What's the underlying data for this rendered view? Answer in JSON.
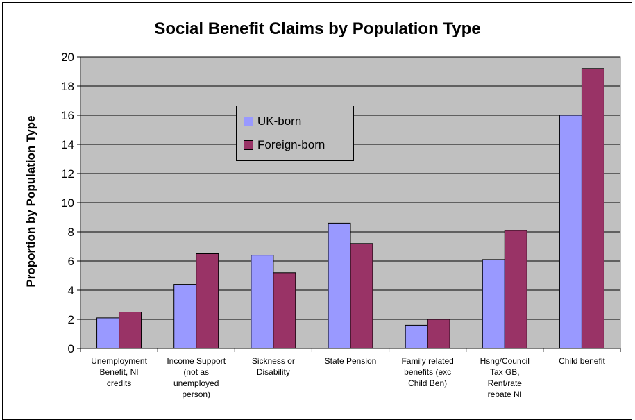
{
  "chart_data": {
    "type": "bar",
    "title": "Social Benefit Claims by Population Type",
    "xlabel": "",
    "ylabel": "Proportion by Population Type",
    "ylim": [
      0,
      20
    ],
    "yticks": [
      0,
      2,
      4,
      6,
      8,
      10,
      12,
      14,
      16,
      18,
      20
    ],
    "grid": true,
    "legend_position": "upper-center",
    "categories": [
      "Unemployment Benefit, NI credits",
      "Income Support (not as unemployed person)",
      "Sickness or Disability",
      "State Pension",
      "Family related benefits (exc Child Ben)",
      "Hsng/Council Tax GB, Rent/rate rebate NI",
      "Child benefit"
    ],
    "category_lines": [
      [
        "Unemployment",
        "Benefit, NI",
        "credits"
      ],
      [
        "Income Support",
        "(not as",
        "unemployed",
        "person)"
      ],
      [
        "Sickness or",
        "Disability"
      ],
      [
        "State Pension"
      ],
      [
        "Family related",
        "benefits (exc",
        "Child Ben)"
      ],
      [
        "Hsng/Council",
        "Tax GB,",
        "Rent/rate",
        "rebate NI"
      ],
      [
        "Child benefit"
      ]
    ],
    "series": [
      {
        "name": "UK-born",
        "color": "#9999ff",
        "values": [
          2.1,
          4.4,
          6.4,
          8.6,
          1.6,
          6.1,
          16.0
        ]
      },
      {
        "name": "Foreign-born",
        "color": "#993366",
        "values": [
          2.5,
          6.5,
          5.2,
          7.2,
          2.0,
          8.1,
          19.2
        ]
      }
    ],
    "plot_background": "#c0c0c0"
  }
}
